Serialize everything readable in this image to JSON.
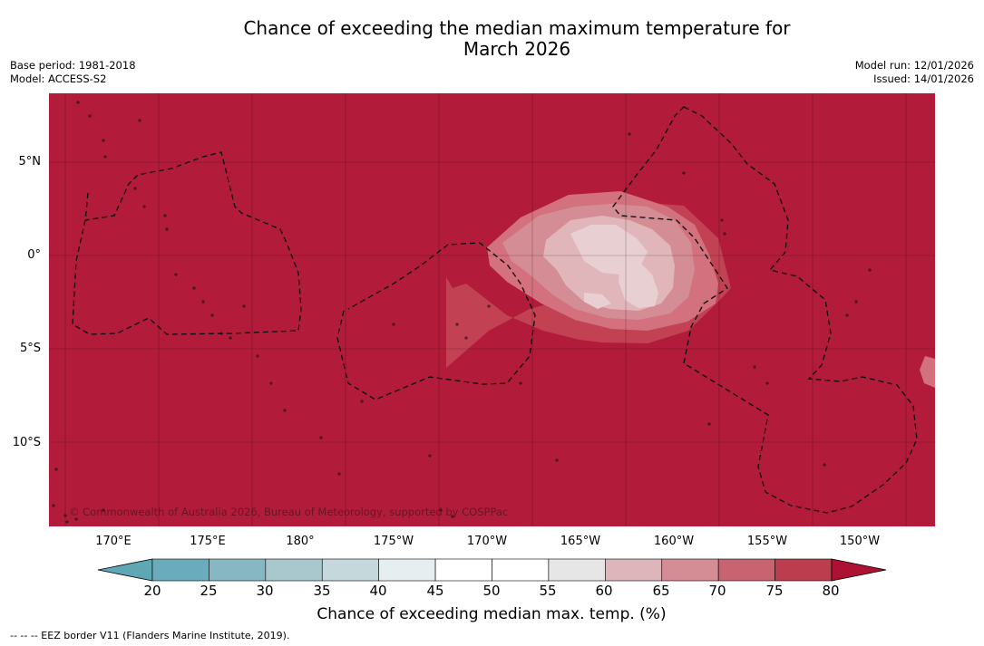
{
  "title_line1": "Chance of exceeding the median maximum temperature for",
  "title_line2": "March 2026",
  "meta": {
    "base_period": "Base period: 1981-2018",
    "model": "Model: ACCESS-S2",
    "model_run": "Model run: 12/01/2026",
    "issued": "Issued: 14/01/2026"
  },
  "map": {
    "background_color": "#b21c3a",
    "lat_labels": [
      "5°N",
      "0°",
      "5°S",
      "10°S"
    ],
    "lon_labels": [
      "170°E",
      "175°E",
      "180°",
      "175°W",
      "170°W",
      "165°W",
      "160°W",
      "155°W",
      "150°W"
    ],
    "copyright": "© Commonwealth of Australia 2026, Bureau of Meteorology, supported by COSPPac",
    "warm_anomaly_contours": [
      "#c24254",
      "#d3717e",
      "#d48d95",
      "#e1b6bb",
      "#e8cfd2"
    ]
  },
  "colorbar": {
    "ticks": [
      "20",
      "25",
      "30",
      "35",
      "40",
      "45",
      "50",
      "55",
      "60",
      "65",
      "70",
      "75",
      "80"
    ],
    "colors": [
      "#6aacbb",
      "#87b7c3",
      "#a8c8cd",
      "#c5d8dc",
      "#e7eef0",
      "#ffffff",
      "#ffffff",
      "#e6e6e6",
      "#ddb6bc",
      "#d48d95",
      "#c8646f",
      "#bb3e4f"
    ],
    "under_color": "#5fa7b5",
    "over_color": "#ad1232",
    "label": "Chance of exceeding median max. temp. (%)"
  },
  "footnote": "--  --  -- EEZ border V11 (Flanders Marine Institute, 2019)."
}
